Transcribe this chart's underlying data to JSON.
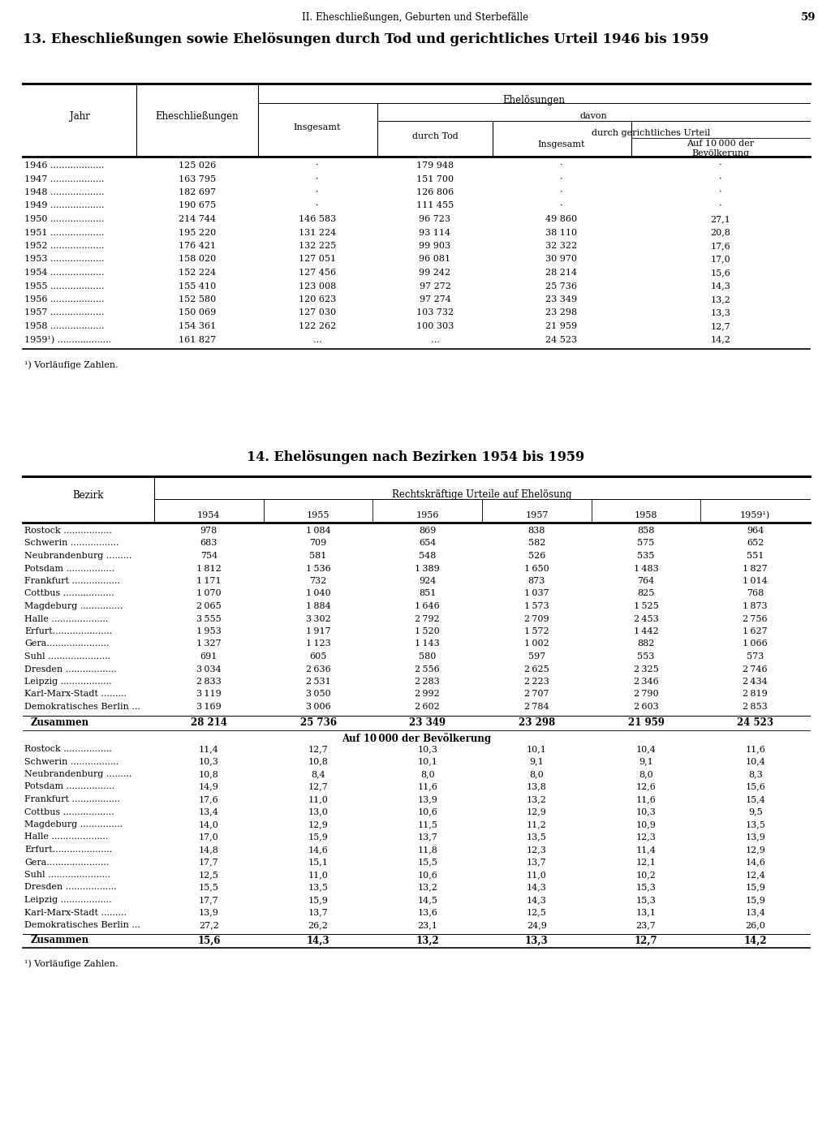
{
  "page_header": "II. Eheschließungen, Geburten und Sterbefälle",
  "page_number": "59",
  "table1_title": "13. Eheschließungen sowie Ehelösungen durch Tod und gerichtliches Urteil 1946 bis 1959",
  "table1_data": [
    [
      "1946",
      "125 026",
      "·",
      "179 948",
      "·",
      "·"
    ],
    [
      "1947",
      "163 795",
      "·",
      "151 700",
      "·",
      "·"
    ],
    [
      "1948",
      "182 697",
      "·",
      "126 806",
      "·",
      "·"
    ],
    [
      "1949",
      "190 675",
      "·",
      "111 455",
      "·",
      "·"
    ],
    [
      "1950",
      "214 744",
      "146 583",
      "96 723",
      "49 860",
      "27,1"
    ],
    [
      "1951",
      "195 220",
      "131 224",
      "93 114",
      "38 110",
      "20,8"
    ],
    [
      "1952",
      "176 421",
      "132 225",
      "99 903",
      "32 322",
      "17,6"
    ],
    [
      "1953",
      "158 020",
      "127 051",
      "96 081",
      "30 970",
      "17,0"
    ],
    [
      "1954",
      "152 224",
      "127 456",
      "99 242",
      "28 214",
      "15,6"
    ],
    [
      "1955",
      "155 410",
      "123 008",
      "97 272",
      "25 736",
      "14,3"
    ],
    [
      "1956",
      "152 580",
      "120 623",
      "97 274",
      "23 349",
      "13,2"
    ],
    [
      "1957",
      "150 069",
      "127 030",
      "103 732",
      "23 298",
      "13,3"
    ],
    [
      "1958",
      "154 361",
      "122 262",
      "100 303",
      "21 959",
      "12,7"
    ],
    [
      "1959¹)",
      "161 827",
      "…",
      "…",
      "24 523",
      "14,2"
    ]
  ],
  "table1_footnote": "¹) Vorläufige Zahlen.",
  "table2_title": "14. Ehelösungen nach Bezirken 1954 bis 1959",
  "table2_header_main": "Rechtskräftige Urteile auf Ehelösung",
  "table2_years": [
    "1954",
    "1955",
    "1956",
    "1957",
    "1958",
    "1959¹)"
  ],
  "table2_bezirk": [
    "Rostock",
    "Schwerin",
    "Neubrandenburg",
    "Potsdam",
    "Frankfurt",
    "Cottbus",
    "Magdeburg",
    "Halle",
    "Erfurt",
    "Gera",
    "Suhl",
    "Dresden",
    "Leipzig",
    "Karl-Marx-Stadt",
    "Demokratisches Berlin"
  ],
  "table2_bezirk_dots": [
    "Rostock .................",
    "Schwerin .................",
    "Neubrandenburg .........",
    "Potsdam .................",
    "Frankfurt .................",
    "Cottbus ..................",
    "Magdeburg ...............",
    "Halle ....................",
    "Erfurt.....................",
    "Gera......................",
    "Suhl ......................",
    "Dresden ..................",
    "Leipzig ..................",
    "Karl-Marx-Stadt .........",
    "Demokratisches Berlin ..."
  ],
  "table2_data_abs": [
    [
      978,
      1084,
      869,
      838,
      858,
      964
    ],
    [
      683,
      709,
      654,
      582,
      575,
      652
    ],
    [
      754,
      581,
      548,
      526,
      535,
      551
    ],
    [
      1812,
      1536,
      1389,
      1650,
      1483,
      1827
    ],
    [
      1171,
      732,
      924,
      873,
      764,
      1014
    ],
    [
      1070,
      1040,
      851,
      1037,
      825,
      768
    ],
    [
      2065,
      1884,
      1646,
      1573,
      1525,
      1873
    ],
    [
      3555,
      3302,
      2792,
      2709,
      2453,
      2756
    ],
    [
      1953,
      1917,
      1520,
      1572,
      1442,
      1627
    ],
    [
      1327,
      1123,
      1143,
      1002,
      882,
      1066
    ],
    [
      691,
      605,
      580,
      597,
      553,
      573
    ],
    [
      3034,
      2636,
      2556,
      2625,
      2325,
      2746
    ],
    [
      2833,
      2531,
      2283,
      2223,
      2346,
      2434
    ],
    [
      3119,
      3050,
      2992,
      2707,
      2790,
      2819
    ],
    [
      3169,
      3006,
      2602,
      2784,
      2603,
      2853
    ]
  ],
  "table2_zusammen_abs": [
    "28 214",
    "25 736",
    "23 349",
    "23 298",
    "21 959",
    "24 523"
  ],
  "table2_data_rate": [
    [
      "11,4",
      "12,7",
      "10,3",
      "10,1",
      "10,4",
      "11,6"
    ],
    [
      "10,3",
      "10,8",
      "10,1",
      "9,1",
      "9,1",
      "10,4"
    ],
    [
      "10,8",
      "8,4",
      "8,0",
      "8,0",
      "8,0",
      "8,3"
    ],
    [
      "14,9",
      "12,7",
      "11,6",
      "13,8",
      "12,6",
      "15,6"
    ],
    [
      "17,6",
      "11,0",
      "13,9",
      "13,2",
      "11,6",
      "15,4"
    ],
    [
      "13,4",
      "13,0",
      "10,6",
      "12,9",
      "10,3",
      "9,5"
    ],
    [
      "14,0",
      "12,9",
      "11,5",
      "11,2",
      "10,9",
      "13,5"
    ],
    [
      "17,0",
      "15,9",
      "13,7",
      "13,5",
      "12,3",
      "13,9"
    ],
    [
      "14,8",
      "14,6",
      "11,8",
      "12,3",
      "11,4",
      "12,9"
    ],
    [
      "17,7",
      "15,1",
      "15,5",
      "13,7",
      "12,1",
      "14,6"
    ],
    [
      "12,5",
      "11,0",
      "10,6",
      "11,0",
      "10,2",
      "12,4"
    ],
    [
      "15,5",
      "13,5",
      "13,2",
      "14,3",
      "15,3",
      "15,9"
    ],
    [
      "17,7",
      "15,9",
      "14,5",
      "14,3",
      "15,3",
      "15,9"
    ],
    [
      "13,9",
      "13,7",
      "13,6",
      "12,5",
      "13,1",
      "13,4"
    ],
    [
      "27,2",
      "26,2",
      "23,1",
      "24,9",
      "23,7",
      "26,0"
    ]
  ],
  "table2_zusammen_rate": [
    "15,6",
    "14,3",
    "13,2",
    "13,3",
    "12,7",
    "14,2"
  ],
  "table2_footnote": "¹) Vorläufige Zahlen."
}
